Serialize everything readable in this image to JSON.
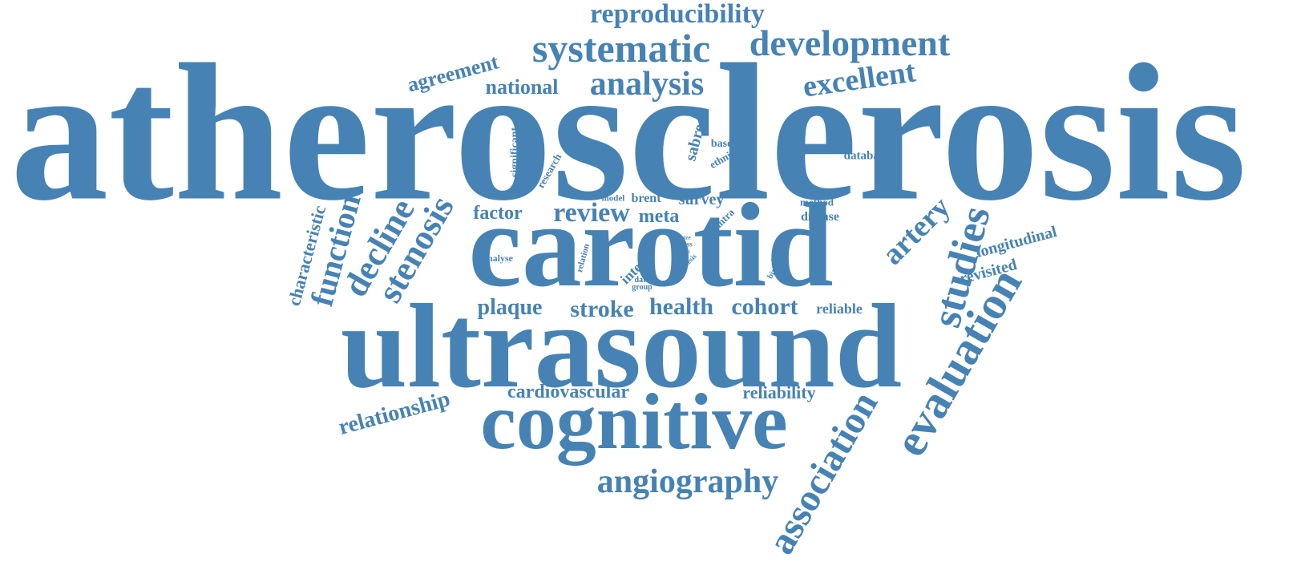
{
  "accent_color": "#4682b4",
  "words": {
    "atherosclerosis": "atherosclerosis",
    "carotid": "carotid",
    "ultrasound": "ultrasound",
    "cognitive": "cognitive",
    "angiography": "angiography",
    "evaluation": "evaluation",
    "association": "association",
    "studies": "studies",
    "systematic": "systematic",
    "development": "development",
    "analysis": "analysis",
    "reproducibility": "reproducibility",
    "excellent": "excellent",
    "agreement": "agreement",
    "national": "national",
    "stenosis": "stenosis",
    "decline": "decline",
    "function": "function",
    "characteristic": "characteristic",
    "review": "review",
    "factor": "factor",
    "meta": "meta",
    "survey": "survey",
    "brent": "brent",
    "model": "model",
    "artery": "artery",
    "longitudinal": "longitudinal",
    "revisited": "revisited",
    "plaque": "plaque",
    "stroke": "stroke",
    "health": "health",
    "cohort": "cohort",
    "reliable": "reliable",
    "relationship": "relationship",
    "cardiovascular": "cardiovascular",
    "reliability": "reliability",
    "significant": "significant",
    "research": "research",
    "sabre": "sabre",
    "based": "based",
    "ethnic": "ethnic",
    "database": "database",
    "method": "method",
    "disease": "disease",
    "intra": "intra",
    "inter": "inter",
    "relation": "relation",
    "analyse": "analyse",
    "size": "size",
    "ass": "ass",
    "risk": "risk",
    "thesis": "thesis",
    "data": "data",
    "group": "group",
    "study": "study",
    "birth": "birth"
  }
}
